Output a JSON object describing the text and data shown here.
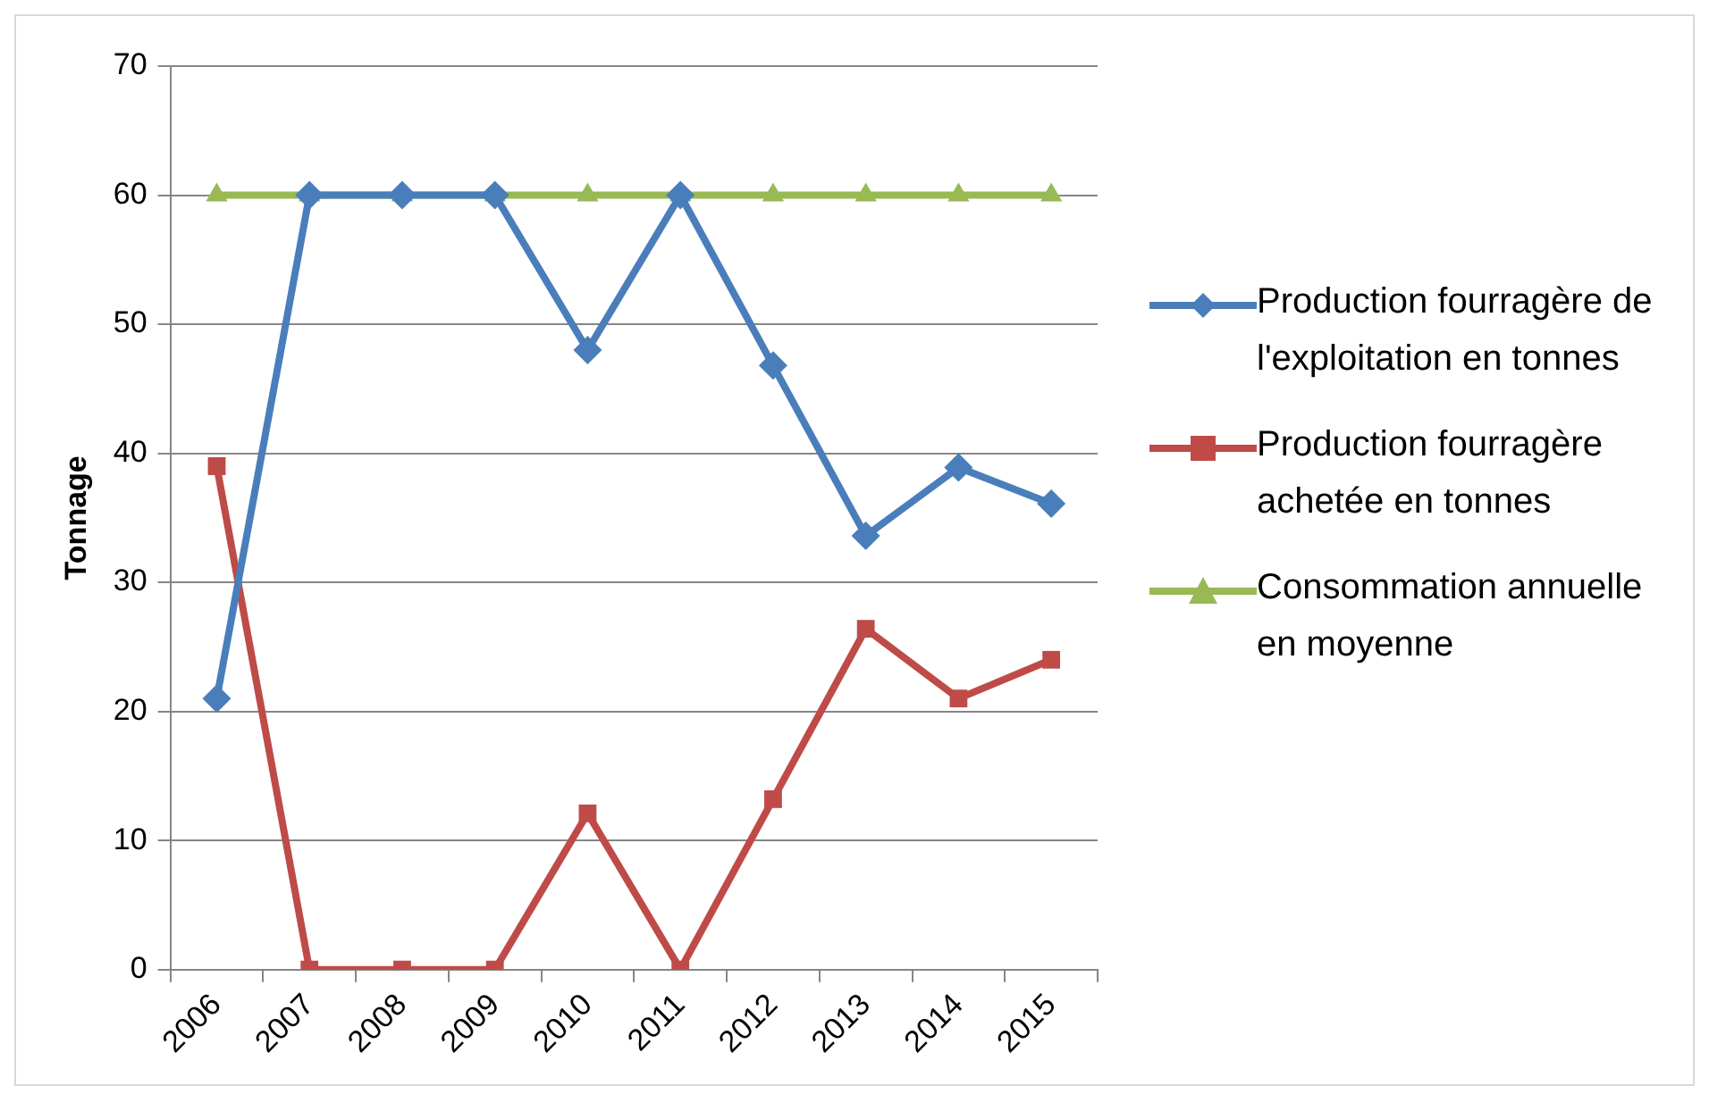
{
  "chart_data": {
    "type": "line",
    "ylabel": "Tonnage",
    "categories": [
      "2006",
      "2007",
      "2008",
      "2009",
      "2010",
      "2011",
      "2012",
      "2013",
      "2014",
      "2015"
    ],
    "series": [
      {
        "name": "Production fourragère de l'exploitation en tonnes",
        "color": "#4a7ebb",
        "marker": "diamond",
        "values": [
          21,
          60,
          60,
          60,
          48,
          60,
          46.8,
          33.6,
          38.9,
          36.1
        ]
      },
      {
        "name": "Production fourragère achetée en tonnes",
        "color": "#be4b48",
        "marker": "square",
        "values": [
          39,
          0,
          0,
          0,
          12.1,
          0,
          13.2,
          26.4,
          21,
          24
        ]
      },
      {
        "name": "Consommation annuelle en moyenne",
        "color": "#98b954",
        "marker": "triangle",
        "values": [
          60,
          60,
          60,
          60,
          60,
          60,
          60,
          60,
          60,
          60
        ]
      }
    ],
    "ylim": [
      0,
      70
    ],
    "yticks": [
      0,
      10,
      20,
      30,
      40,
      50,
      60,
      70
    ],
    "grid": "y",
    "legend": "right",
    "line_style": "solid"
  }
}
